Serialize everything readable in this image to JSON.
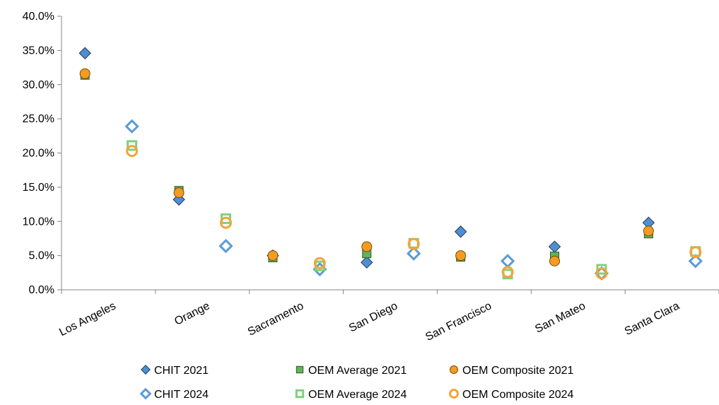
{
  "chart_data": {
    "type": "scatter",
    "title": "",
    "xlabel": "",
    "ylabel": "",
    "categories": [
      "Los Angeles",
      "Orange",
      "Sacramento",
      "San Diego",
      "San Francisco",
      "San Mateo",
      "Santa Clara"
    ],
    "ylim": [
      0,
      0.4
    ],
    "yticks": [
      "0.0%",
      "5.0%",
      "10.0%",
      "15.0%",
      "20.0%",
      "25.0%",
      "30.0%",
      "35.0%",
      "40.0%"
    ],
    "grid": false,
    "legend_position": "bottom",
    "series": [
      {
        "name": "CHIT 2021",
        "marker": "diamond",
        "filled": true,
        "color": "#4f8fcf",
        "stroke": "#1f3864",
        "offset": "left",
        "values": [
          0.346,
          0.132,
          0.05,
          0.04,
          0.085,
          0.063,
          0.098
        ]
      },
      {
        "name": "OEM Average 2021",
        "marker": "square",
        "filled": true,
        "color": "#5fb45f",
        "stroke": "#375623",
        "offset": "left",
        "values": [
          0.314,
          0.145,
          0.047,
          0.053,
          0.048,
          0.049,
          0.082
        ]
      },
      {
        "name": "OEM Composite 2021",
        "marker": "circle",
        "filled": true,
        "color": "#f39c21",
        "stroke": "#7f4c00",
        "offset": "left",
        "values": [
          0.316,
          0.142,
          0.05,
          0.063,
          0.05,
          0.042,
          0.086
        ]
      },
      {
        "name": "CHIT 2024",
        "marker": "diamond",
        "filled": false,
        "color": "#5b9bd5",
        "stroke": "#5b9bd5",
        "offset": "right",
        "values": [
          0.239,
          0.064,
          0.03,
          0.053,
          0.042,
          0.024,
          0.042
        ]
      },
      {
        "name": "OEM Average 2024",
        "marker": "square",
        "filled": false,
        "color": "#7fd07f",
        "stroke": "#7fd07f",
        "offset": "right",
        "values": [
          0.211,
          0.104,
          0.035,
          0.068,
          0.023,
          0.03,
          0.056
        ]
      },
      {
        "name": "OEM Composite 2024",
        "marker": "circle",
        "filled": false,
        "color": "#f5a334",
        "stroke": "#f5a334",
        "offset": "right",
        "values": [
          0.203,
          0.098,
          0.039,
          0.067,
          0.026,
          0.024,
          0.055
        ]
      }
    ]
  }
}
